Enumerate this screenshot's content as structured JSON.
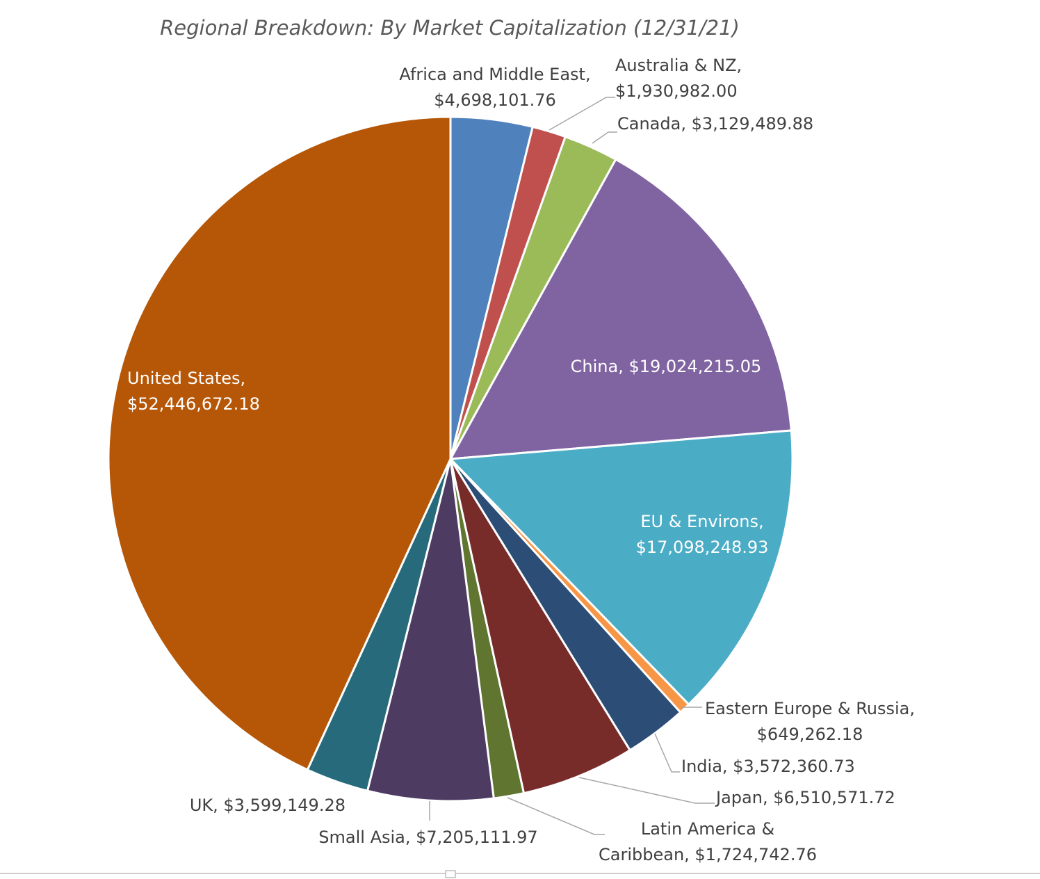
{
  "chart_data": {
    "type": "pie",
    "title": "Regional Breakdown: By Market Capitalization (12/31/21)",
    "start_angle_deg": 0,
    "direction": "clockwise",
    "legend": "none",
    "slices": [
      {
        "category": "Africa and Middle East",
        "value": 4698101.76,
        "value_label": "$4,698,101.76",
        "label_lines": [
          "Africa and Middle East,",
          "$4,698,101.76"
        ],
        "color": "#4F81BD",
        "label_position": "outside",
        "label_align": "middle"
      },
      {
        "category": "Australia & NZ",
        "value": 1930982.0,
        "value_label": "$1,930,982.00",
        "label_lines": [
          "Australia & NZ,",
          "$1,930,982.00"
        ],
        "color": "#C0504D",
        "label_position": "outside",
        "label_align": "start"
      },
      {
        "category": "Canada",
        "value": 3129489.88,
        "value_label": "$3,129,489.88",
        "label_lines": [
          "Canada, $3,129,489.88"
        ],
        "color": "#9BBB59",
        "label_position": "outside",
        "label_align": "start"
      },
      {
        "category": "China",
        "value": 19024215.05,
        "value_label": "$19,024,215.05",
        "label_lines": [
          "China, $19,024,215.05"
        ],
        "color": "#8064A2",
        "label_position": "inside",
        "label_align": "middle"
      },
      {
        "category": "EU & Environs",
        "value": 17098248.93,
        "value_label": "$17,098,248.93",
        "label_lines": [
          "EU & Environs,",
          "$17,098,248.93"
        ],
        "color": "#4BACC6",
        "label_position": "inside",
        "label_align": "middle"
      },
      {
        "category": "Eastern Europe & Russia",
        "value": 649262.18,
        "value_label": "$649,262.18",
        "label_lines": [
          "Eastern Europe & Russia,",
          "$649,262.18"
        ],
        "color": "#F79646",
        "label_position": "outside",
        "label_align": "middle"
      },
      {
        "category": "India",
        "value": 3572360.73,
        "value_label": "$3,572,360.73",
        "label_lines": [
          "India, $3,572,360.73"
        ],
        "color": "#2C4D75",
        "label_position": "outside",
        "label_align": "start"
      },
      {
        "category": "Japan",
        "value": 6510571.72,
        "value_label": "$6,510,571.72",
        "label_lines": [
          "Japan, $6,510,571.72"
        ],
        "color": "#772C2A",
        "label_position": "outside",
        "label_align": "start"
      },
      {
        "category": "Latin America & Caribbean",
        "value": 1724742.76,
        "value_label": "$1,724,742.76",
        "label_lines": [
          "Latin America &",
          "Caribbean, $1,724,742.76"
        ],
        "color": "#5F7530",
        "label_position": "outside",
        "label_align": "middle"
      },
      {
        "category": "Small Asia",
        "value": 7205111.97,
        "value_label": "$7,205,111.97",
        "label_lines": [
          "Small Asia, $7,205,111.97"
        ],
        "color": "#4D3B62",
        "label_position": "outside",
        "label_align": "middle"
      },
      {
        "category": "UK",
        "value": 3599149.28,
        "value_label": "$3,599,149.28",
        "label_lines": [
          "UK, $3,599,149.28"
        ],
        "color": "#276A7C",
        "label_position": "outside",
        "label_align": "end"
      },
      {
        "category": "United States",
        "value": 52446672.18,
        "value_label": "$52,446,672.18",
        "label_lines": [
          "United States,",
          "$52,446,672.18"
        ],
        "color": "#B65708",
        "label_position": "inside",
        "label_align": "start"
      }
    ]
  }
}
